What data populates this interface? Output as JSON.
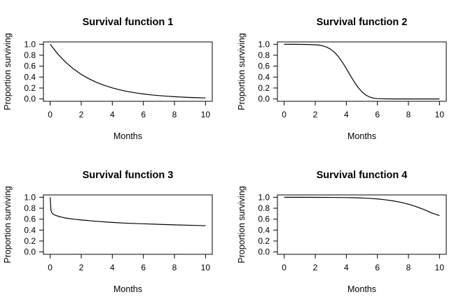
{
  "chart_data": [
    {
      "type": "line",
      "title": "Survival function 1",
      "xlabel": "Months",
      "ylabel": "Proportion surviving",
      "xlim": [
        0,
        10
      ],
      "ylim": [
        0,
        1
      ],
      "xticks": [
        "0",
        "2",
        "4",
        "6",
        "8",
        "10"
      ],
      "yticks": [
        "0.0",
        "0.2",
        "0.4",
        "0.6",
        "0.8",
        "1.0"
      ],
      "x": [
        0,
        0.5,
        1,
        1.5,
        2,
        2.5,
        3,
        3.5,
        4,
        4.5,
        5,
        5.5,
        6,
        6.5,
        7,
        7.5,
        8,
        8.5,
        9,
        9.5,
        10
      ],
      "y": [
        1.0,
        0.819,
        0.67,
        0.549,
        0.449,
        0.368,
        0.301,
        0.247,
        0.202,
        0.165,
        0.135,
        0.111,
        0.091,
        0.074,
        0.061,
        0.05,
        0.041,
        0.033,
        0.027,
        0.022,
        0.018
      ]
    },
    {
      "type": "line",
      "title": "Survival function 2",
      "xlabel": "Months",
      "ylabel": "Proportion surviving",
      "xlim": [
        0,
        10
      ],
      "ylim": [
        0,
        1
      ],
      "xticks": [
        "0",
        "2",
        "4",
        "6",
        "8",
        "10"
      ],
      "yticks": [
        "0.0",
        "0.2",
        "0.4",
        "0.6",
        "0.8",
        "1.0"
      ],
      "x": [
        0,
        0.5,
        1,
        1.5,
        2,
        2.25,
        2.5,
        2.75,
        3,
        3.25,
        3.5,
        3.75,
        4,
        4.25,
        4.5,
        4.75,
        5,
        5.25,
        5.5,
        5.75,
        6,
        6.5,
        7,
        8,
        9,
        10
      ],
      "y": [
        1.0,
        1.0,
        0.999,
        0.997,
        0.991,
        0.984,
        0.971,
        0.947,
        0.908,
        0.85,
        0.77,
        0.67,
        0.555,
        0.434,
        0.317,
        0.214,
        0.131,
        0.072,
        0.035,
        0.015,
        0.005,
        0.001,
        0.0,
        0.0,
        0.0,
        0.0
      ]
    },
    {
      "type": "line",
      "title": "Survival function 3",
      "xlabel": "Months",
      "ylabel": "Proportion surviving",
      "xlim": [
        0,
        10
      ],
      "ylim": [
        0,
        1
      ],
      "xticks": [
        "0",
        "2",
        "4",
        "6",
        "8",
        "10"
      ],
      "yticks": [
        "0.0",
        "0.2",
        "0.4",
        "0.6",
        "0.8",
        "1.0"
      ],
      "x": [
        0,
        0.05,
        0.1,
        0.2,
        0.3,
        0.5,
        0.75,
        1,
        1.5,
        2,
        3,
        4,
        5,
        6,
        7,
        8,
        9,
        10
      ],
      "y": [
        1.0,
        0.76,
        0.72,
        0.69,
        0.675,
        0.655,
        0.635,
        0.62,
        0.6,
        0.585,
        0.56,
        0.54,
        0.525,
        0.515,
        0.505,
        0.495,
        0.488,
        0.48
      ]
    },
    {
      "type": "line",
      "title": "Survival function 4",
      "xlabel": "Months",
      "ylabel": "Proportion surviving",
      "xlim": [
        0,
        10
      ],
      "ylim": [
        0,
        1
      ],
      "xticks": [
        "0",
        "2",
        "4",
        "6",
        "8",
        "10"
      ],
      "yticks": [
        "0.0",
        "0.2",
        "0.4",
        "0.6",
        "0.8",
        "1.0"
      ],
      "x": [
        0,
        1,
        2,
        3,
        4,
        4.5,
        5,
        5.5,
        6,
        6.5,
        7,
        7.5,
        8,
        8.5,
        9,
        9.5,
        10
      ],
      "y": [
        1.0,
        1.0,
        0.999,
        0.998,
        0.995,
        0.992,
        0.987,
        0.98,
        0.97,
        0.955,
        0.935,
        0.908,
        0.873,
        0.829,
        0.776,
        0.714,
        0.665
      ]
    }
  ]
}
